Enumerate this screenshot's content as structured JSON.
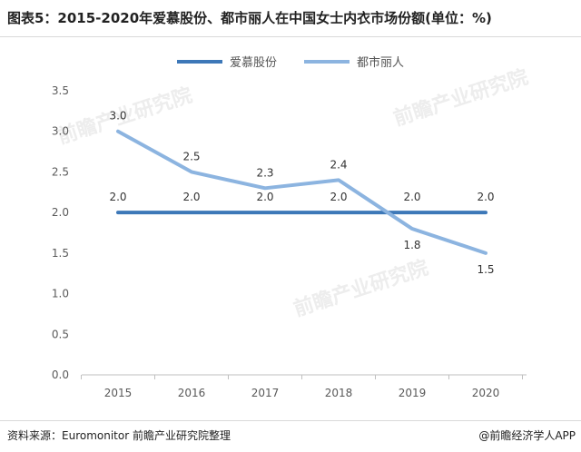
{
  "title": "图表5：2015-2020年爱慕股份、都市丽人在中国女士内衣市场份额(单位：%)",
  "source": "资料来源：Euromonitor 前瞻产业研究院整理",
  "credit": "@前瞻经济学人APP",
  "watermark": "前瞻产业研究院",
  "colors": {
    "series1": "#3d78b8",
    "series2": "#8cb4e0",
    "axis": "#bfbfbf",
    "text": "#595959"
  },
  "chart_data": {
    "type": "line",
    "categories": [
      "2015",
      "2016",
      "2017",
      "2018",
      "2019",
      "2020"
    ],
    "series": [
      {
        "name": "爱慕股份",
        "values": [
          2.0,
          2.0,
          2.0,
          2.0,
          2.0,
          2.0
        ],
        "labels": [
          "2.0",
          "2.0",
          "2.0",
          "2.0",
          "2.0",
          "2.0"
        ]
      },
      {
        "name": "都市丽人",
        "values": [
          3.0,
          2.5,
          2.3,
          2.4,
          1.8,
          1.5
        ],
        "labels": [
          "3.0",
          "2.5",
          "2.3",
          "2.4",
          "1.8",
          "1.5"
        ]
      }
    ],
    "yticks": [
      "0.0",
      "0.5",
      "1.0",
      "1.5",
      "2.0",
      "2.5",
      "3.0",
      "3.5"
    ],
    "ylim": [
      0,
      3.5
    ],
    "grid": false,
    "legend": "top-center"
  }
}
